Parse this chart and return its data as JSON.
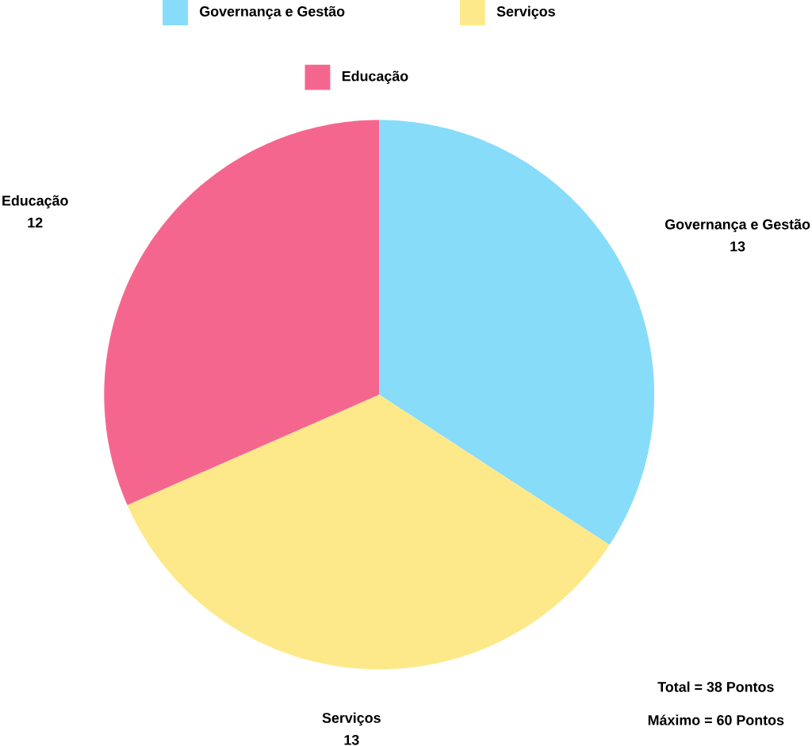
{
  "chart_data": {
    "type": "pie",
    "categories": [
      "Governança e Gestão",
      "Serviços",
      "Educação"
    ],
    "values": [
      13,
      13,
      12
    ],
    "colors": [
      "#87dcf9",
      "#fde98a",
      "#f5668f"
    ],
    "data_labels": true,
    "legend": "top",
    "annotations": [
      "Total = 38 Pontos",
      "Máximo = 60 Pontos"
    ]
  }
}
